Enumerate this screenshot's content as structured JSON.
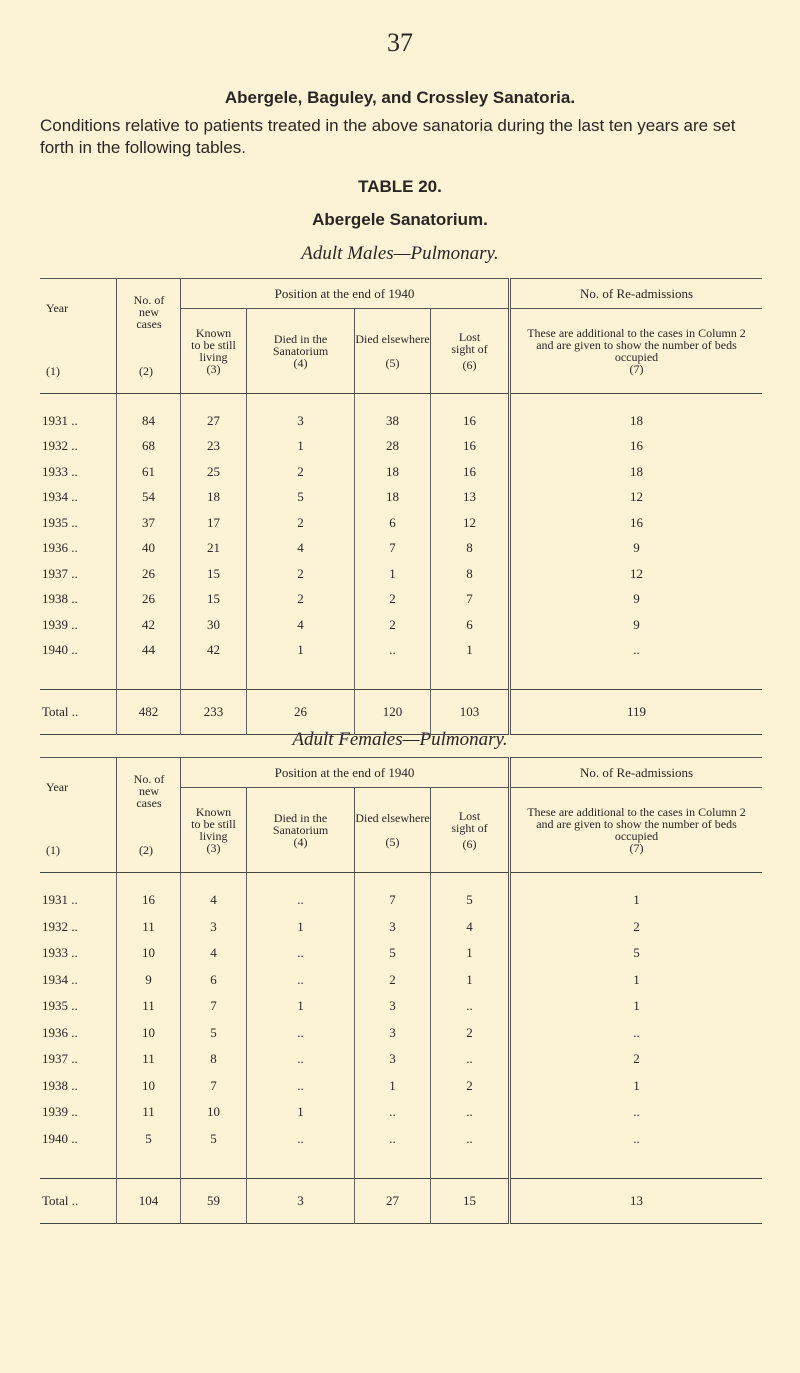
{
  "page_number": "37",
  "heading": "Abergele, Baguley, and Crossley Sanatoria.",
  "intro": "Conditions relative to patients treated in the above sanatoria during the last ten years are set forth in the following tables.",
  "table_label": "TABLE 20.",
  "sanatorium": "Abergele Sanatorium.",
  "headers": {
    "year": "Year",
    "year_n": "(1)",
    "new": "No. of new cases",
    "new_n": "(2)",
    "position": "Position at the end of 1940",
    "known": "Known to be still living",
    "known_n": "(3)",
    "died_in": "Died in the Sanatorium",
    "died_in_n": "(4)",
    "died_else": "Died elsewhere",
    "died_else_n": "(5)",
    "lost": "Lost sight of",
    "lost_n": "(6)",
    "readm": "No. of Re-admissions",
    "readm_note": "These are additional to the cases in Column 2 and are given to show the number of beds occupied",
    "readm_n": "(7)"
  },
  "tables": [
    {
      "title": "Adult Males—Pulmonary.",
      "rows": [
        [
          "1931 ..",
          "84",
          "27",
          "3",
          "38",
          "16",
          "18"
        ],
        [
          "1932 ..",
          "68",
          "23",
          "1",
          "28",
          "16",
          "16"
        ],
        [
          "1933 ..",
          "61",
          "25",
          "2",
          "18",
          "16",
          "18"
        ],
        [
          "1934 ..",
          "54",
          "18",
          "5",
          "18",
          "13",
          "12"
        ],
        [
          "1935 ..",
          "37",
          "17",
          "2",
          "6",
          "12",
          "16"
        ],
        [
          "1936 ..",
          "40",
          "21",
          "4",
          "7",
          "8",
          "9"
        ],
        [
          "1937 ..",
          "26",
          "15",
          "2",
          "1",
          "8",
          "12"
        ],
        [
          "1938 ..",
          "26",
          "15",
          "2",
          "2",
          "7",
          "9"
        ],
        [
          "1939 ..",
          "42",
          "30",
          "4",
          "2",
          "6",
          "9"
        ],
        [
          "1940 ..",
          "44",
          "42",
          "1",
          "..",
          "1",
          ".."
        ]
      ],
      "total": [
        "Total ..",
        "482",
        "233",
        "26",
        "120",
        "103",
        "119"
      ]
    },
    {
      "title": "Adult Females—Pulmonary.",
      "rows": [
        [
          "1931 ..",
          "16",
          "4",
          "..",
          "7",
          "5",
          "1"
        ],
        [
          "1932 ..",
          "11",
          "3",
          "1",
          "3",
          "4",
          "2"
        ],
        [
          "1933 ..",
          "10",
          "4",
          "..",
          "5",
          "1",
          "5"
        ],
        [
          "1934 ..",
          "9",
          "6",
          "..",
          "2",
          "1",
          "1"
        ],
        [
          "1935 ..",
          "11",
          "7",
          "1",
          "3",
          "..",
          "1"
        ],
        [
          "1936 ..",
          "10",
          "5",
          "..",
          "3",
          "2",
          ".."
        ],
        [
          "1937 ..",
          "11",
          "8",
          "..",
          "3",
          "..",
          "2"
        ],
        [
          "1938 ..",
          "10",
          "7",
          "..",
          "1",
          "2",
          "1"
        ],
        [
          "1939 ..",
          "11",
          "10",
          "1",
          "..",
          "..",
          ".."
        ],
        [
          "1940 ..",
          "5",
          "5",
          "..",
          "..",
          "..",
          ".."
        ]
      ],
      "total": [
        "Total ..",
        "104",
        "59",
        "3",
        "27",
        "15",
        "13"
      ]
    }
  ]
}
